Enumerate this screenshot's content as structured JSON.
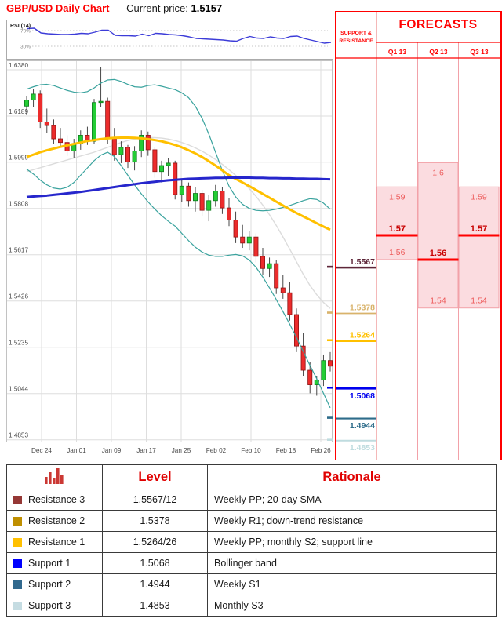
{
  "header": {
    "title": "GBP/USD Daily Chart",
    "price_label": "Current price:",
    "price_value": "1.5157"
  },
  "rsi": {
    "label": "RSI (14)",
    "upper_label": "70%",
    "lower_label": "30%",
    "upper": 70,
    "lower": 30,
    "line_color": "#3c3cd8",
    "values": [
      75,
      76,
      64,
      62,
      61,
      60,
      60,
      61,
      63,
      62,
      66,
      71,
      71,
      58,
      57,
      57,
      56,
      61,
      57,
      63,
      62,
      60,
      59,
      57,
      54,
      50,
      49,
      48,
      47,
      46,
      44,
      43,
      50,
      55,
      51,
      50,
      54,
      51,
      50,
      55,
      56,
      50,
      46,
      42,
      38,
      40
    ]
  },
  "chart_data": {
    "type": "candlestick",
    "title": "GBP/USD Daily Chart",
    "up_color": "#24cd35",
    "up_stroke": "#0e7a1e",
    "down_color": "#ec2c2c",
    "down_stroke": "#8f1414",
    "y_ticks": [
      {
        "price": 1.638,
        "label": "1.6380"
      },
      {
        "price": 1.6189,
        "label": "1.6189"
      },
      {
        "price": 1.5999,
        "label": "1.5999"
      },
      {
        "price": 1.5808,
        "label": "1.5808"
      },
      {
        "price": 1.5617,
        "label": "1.5617"
      },
      {
        "price": 1.5426,
        "label": "1.5426"
      },
      {
        "price": 1.5235,
        "label": "1.5235"
      },
      {
        "price": 1.5044,
        "label": "1.5044"
      },
      {
        "price": 1.4853,
        "label": "1.4853"
      }
    ],
    "x_labels": [
      "Dec 24",
      "Jan 01",
      "Jan 09",
      "Jan 17",
      "Jan 25",
      "Feb 02",
      "Feb 10",
      "Feb 18",
      "Feb 26"
    ],
    "candles": [
      [
        1.623,
        1.627,
        1.6195,
        1.6255
      ],
      [
        1.6255,
        1.63,
        1.6225,
        1.628
      ],
      [
        1.628,
        1.6295,
        1.614,
        1.6165
      ],
      [
        1.6165,
        1.622,
        1.612,
        1.615
      ],
      [
        1.615,
        1.6175,
        1.6075,
        1.6095
      ],
      [
        1.6095,
        1.614,
        1.606,
        1.608
      ],
      [
        1.608,
        1.611,
        1.6025,
        1.6045
      ],
      [
        1.6045,
        1.6095,
        1.6015,
        1.6075
      ],
      [
        1.6075,
        1.613,
        1.605,
        1.611
      ],
      [
        1.611,
        1.6145,
        1.607,
        1.6085
      ],
      [
        1.6085,
        1.626,
        1.6075,
        1.6245
      ],
      [
        1.6245,
        1.639,
        1.6225,
        1.625
      ],
      [
        1.625,
        1.6265,
        1.6075,
        1.6095
      ],
      [
        1.6095,
        1.614,
        1.6005,
        1.603
      ],
      [
        1.603,
        1.6085,
        1.5995,
        1.606
      ],
      [
        1.606,
        1.607,
        1.5975,
        1.6
      ],
      [
        1.6,
        1.6065,
        1.5965,
        1.6045
      ],
      [
        1.6045,
        1.613,
        1.602,
        1.611
      ],
      [
        1.611,
        1.6125,
        1.6025,
        1.605
      ],
      [
        1.605,
        1.606,
        1.5935,
        1.596
      ],
      [
        1.596,
        1.6005,
        1.5915,
        1.5985
      ],
      [
        1.5985,
        1.6015,
        1.594,
        1.5995
      ],
      [
        1.5995,
        1.6005,
        1.5845,
        1.5865
      ],
      [
        1.5865,
        1.5925,
        1.5835,
        1.59
      ],
      [
        1.59,
        1.5915,
        1.5815,
        1.584
      ],
      [
        1.584,
        1.5895,
        1.5795,
        1.587
      ],
      [
        1.587,
        1.5885,
        1.5775,
        1.58
      ],
      [
        1.58,
        1.5865,
        1.5755,
        1.584
      ],
      [
        1.584,
        1.5905,
        1.5815,
        1.588
      ],
      [
        1.588,
        1.5895,
        1.5785,
        1.581
      ],
      [
        1.581,
        1.585,
        1.5735,
        1.576
      ],
      [
        1.576,
        1.5795,
        1.5665,
        1.569
      ],
      [
        1.569,
        1.574,
        1.5645,
        1.5665
      ],
      [
        1.5665,
        1.5715,
        1.5635,
        1.569
      ],
      [
        1.569,
        1.5705,
        1.5585,
        1.561
      ],
      [
        1.561,
        1.5645,
        1.5535,
        1.556
      ],
      [
        1.556,
        1.5605,
        1.5525,
        1.558
      ],
      [
        1.558,
        1.5595,
        1.5455,
        1.548
      ],
      [
        1.548,
        1.5535,
        1.5435,
        1.546
      ],
      [
        1.546,
        1.5505,
        1.5345,
        1.537
      ],
      [
        1.537,
        1.5395,
        1.5215,
        1.524
      ],
      [
        1.524,
        1.5295,
        1.5115,
        1.514
      ],
      [
        1.514,
        1.5175,
        1.5045,
        1.508
      ],
      [
        1.508,
        1.5115,
        1.5035,
        1.51
      ],
      [
        1.51,
        1.5205,
        1.5075,
        1.518
      ],
      [
        1.518,
        1.5215,
        1.5135,
        1.5157
      ]
    ],
    "series": [
      {
        "name": "sma-20",
        "color": "#dcdcdc",
        "width": 1.4,
        "values": [
          1.596,
          1.5968,
          1.5976,
          1.5984,
          1.5992,
          1.6,
          1.6008,
          1.6016,
          1.6024,
          1.6032,
          1.604,
          1.605,
          1.606,
          1.607,
          1.608,
          1.6088,
          1.6094,
          1.6098,
          1.61,
          1.61,
          1.6098,
          1.6094,
          1.6088,
          1.608,
          1.607,
          1.6058,
          1.6044,
          1.6028,
          1.601,
          1.599,
          1.5968,
          1.5944,
          1.5918,
          1.589,
          1.5858,
          1.5822,
          1.5782,
          1.5738,
          1.569,
          1.564,
          1.5588,
          1.5536,
          1.549,
          1.5452,
          1.542,
          1.5395
        ]
      },
      {
        "name": "bollinger-upper",
        "color": "#3aa39e",
        "width": 1.2,
        "values": [
          1.63,
          1.631,
          1.6318,
          1.632,
          1.6315,
          1.6305,
          1.6295,
          1.6288,
          1.6285,
          1.629,
          1.6305,
          1.6325,
          1.6338,
          1.634,
          1.6332,
          1.632,
          1.631,
          1.6308,
          1.6315,
          1.6318,
          1.6312,
          1.6305,
          1.6298,
          1.6285,
          1.6265,
          1.623,
          1.618,
          1.6115,
          1.604,
          1.5965,
          1.59,
          1.5855,
          1.5825,
          1.5808,
          1.58,
          1.5798,
          1.58,
          1.5805,
          1.5812,
          1.582,
          1.583,
          1.584,
          1.5848,
          1.5845,
          1.583,
          1.5805
        ]
      },
      {
        "name": "bollinger-lower",
        "color": "#3aa39e",
        "width": 1.2,
        "values": [
          1.597,
          1.595,
          1.5925,
          1.5905,
          1.5892,
          1.5888,
          1.5895,
          1.5915,
          1.5945,
          1.5975,
          1.6005,
          1.6028,
          1.604,
          1.6022,
          1.5985,
          1.5945,
          1.5905,
          1.5868,
          1.5835,
          1.5805,
          1.5778,
          1.5755,
          1.5735,
          1.5705,
          1.5675,
          1.5648,
          1.5628,
          1.5615,
          1.561,
          1.561,
          1.5615,
          1.5618,
          1.5612,
          1.5595,
          1.5565,
          1.5525,
          1.548,
          1.5432,
          1.5382,
          1.533,
          1.5275,
          1.5218,
          1.516,
          1.5105,
          1.5045,
          1.4985
        ]
      },
      {
        "name": "sma-55",
        "color": "#ffc000",
        "width": 3,
        "values": [
          1.602,
          1.603,
          1.604,
          1.6048,
          1.6055,
          1.6062,
          1.6068,
          1.6074,
          1.608,
          1.6086,
          1.609,
          1.6094,
          1.6097,
          1.6099,
          1.61,
          1.61,
          1.6099,
          1.6097,
          1.6094,
          1.609,
          1.6085,
          1.6078,
          1.607,
          1.606,
          1.6048,
          1.6035,
          1.602,
          1.6003,
          1.5985,
          1.5965,
          1.5945,
          1.593,
          1.5915,
          1.59,
          1.5884,
          1.5868,
          1.5852,
          1.5836,
          1.582,
          1.5804,
          1.5789,
          1.5775,
          1.5761,
          1.5747,
          1.5733,
          1.572
        ]
      },
      {
        "name": "sma-100",
        "color": "#2626cc",
        "width": 3,
        "values": [
          1.5855,
          1.5857,
          1.5859,
          1.5861,
          1.5864,
          1.5867,
          1.587,
          1.5873,
          1.5876,
          1.588,
          1.5884,
          1.5888,
          1.5892,
          1.5896,
          1.59,
          1.5904,
          1.5908,
          1.5912,
          1.5915,
          1.5918,
          1.5921,
          1.5924,
          1.5926,
          1.5928,
          1.593,
          1.5931,
          1.5932,
          1.5933,
          1.5934,
          1.5934,
          1.5935,
          1.5935,
          1.5935,
          1.5935,
          1.5934,
          1.5934,
          1.5933,
          1.5933,
          1.5932,
          1.5932,
          1.5931,
          1.5931,
          1.593,
          1.593,
          1.5929,
          1.5928
        ]
      }
    ]
  },
  "sr_panel": {
    "header_line1": "SUPPORT &",
    "header_line2": "RESISTANCE",
    "levels": [
      {
        "price": 1.5567,
        "label": "1.5567",
        "color": "#5e2639",
        "bold": true,
        "label_side": "above",
        "line_width": 2.6
      },
      {
        "price": 1.5378,
        "label": "1.5378",
        "color": "#d9b36b",
        "bold": true,
        "label_side": "above",
        "line_width": 1.8
      },
      {
        "price": 1.5264,
        "label": "1.5264",
        "color": "#ffc000",
        "bold": true,
        "label_side": "above",
        "line_width": 2.6
      },
      {
        "price": 1.5068,
        "label": "1.5068",
        "color": "#0000ee",
        "bold": true,
        "label_side": "below",
        "line_width": 2.6
      },
      {
        "price": 1.4944,
        "label": "1.4944",
        "color": "#2e6c8a",
        "bold": true,
        "label_side": "below",
        "line_width": 2.2
      },
      {
        "price": 1.4853,
        "label": "1.4853",
        "color": "#bfdcdf",
        "bold": true,
        "label_side": "below",
        "line_width": 2.0
      }
    ]
  },
  "forecasts": {
    "title": "FORECASTS",
    "box_fill": "#fbdce0",
    "box_stroke": "#f2a1a8",
    "bold_line_color": "#ff0000",
    "label_color": "#ed5a5a",
    "bold_label_color": "#c80000",
    "columns": [
      {
        "label": "Q1 13",
        "high": 1.59,
        "high_label": "1.59",
        "mid": 1.57,
        "mid_label": "1.57",
        "low": 1.56,
        "low_label": "1.56"
      },
      {
        "label": "Q2 13",
        "high": 1.6,
        "high_label": "1.6",
        "mid": 1.56,
        "mid_label": "1.56",
        "low": 1.54,
        "low_label": "1.54"
      },
      {
        "label": "Q3 13",
        "high": 1.59,
        "high_label": "1.59",
        "mid": 1.57,
        "mid_label": "1.57",
        "low": 1.54,
        "low_label": "1.54"
      }
    ]
  },
  "table": {
    "icon": "bar-chart-icon",
    "icon_color": "#cb3834",
    "level_header": "Level",
    "rationale_header": "Rationale",
    "rows": [
      {
        "swatch": "#953735",
        "label": "Resistance 3",
        "level": "1.5567/12",
        "rationale": "Weekly PP; 20-day SMA"
      },
      {
        "swatch": "#bf8f00",
        "label": "Resistance 2",
        "level": "1.5378",
        "rationale": "Weekly R1; down-trend resistance"
      },
      {
        "swatch": "#ffc000",
        "label": "Resistance 1",
        "level": "1.5264/26",
        "rationale": "Weekly PP; monthly S2; support line"
      },
      {
        "swatch": "#0000ff",
        "label": "Support 1",
        "level": "1.5068",
        "rationale": "Bollinger band"
      },
      {
        "swatch": "#31698e",
        "label": "Support 2",
        "level": "1.4944",
        "rationale": "Weekly S1"
      },
      {
        "swatch": "#c5dce2",
        "label": "Support 3",
        "level": "1.4853",
        "rationale": "Monthly S3"
      }
    ]
  }
}
